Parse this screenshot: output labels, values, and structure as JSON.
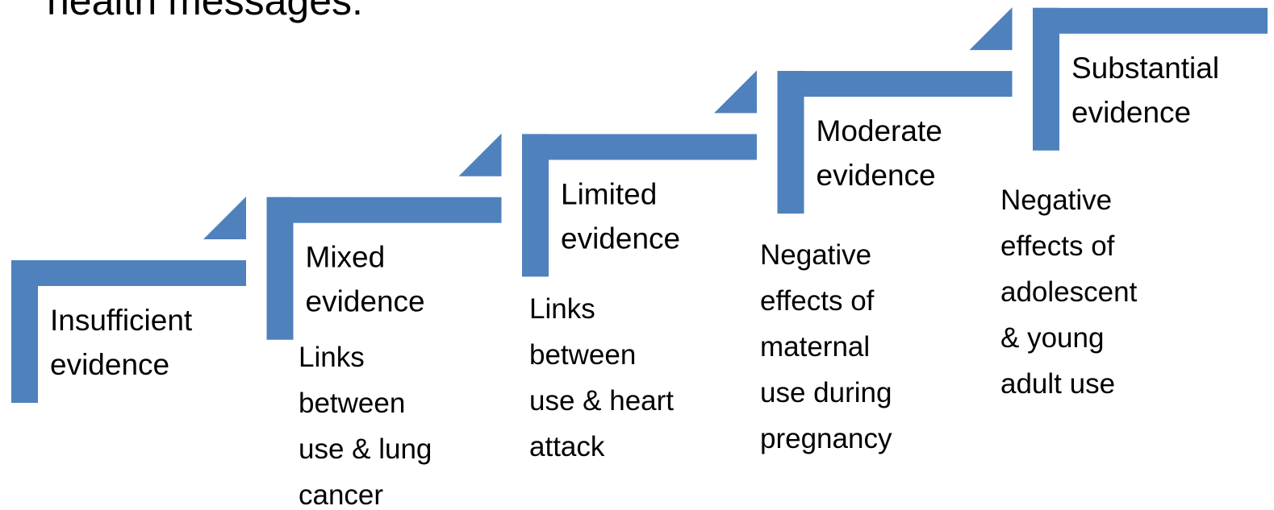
{
  "title": "health messages:",
  "steps": [
    {
      "label": [
        "Insufficient",
        "evidence"
      ],
      "description": []
    },
    {
      "label": [
        "Mixed",
        "evidence"
      ],
      "description": [
        "Links",
        "between",
        "use & lung",
        "cancer"
      ]
    },
    {
      "label": [
        "Limited",
        "evidence"
      ],
      "description": [
        "Links",
        "between",
        "use & heart",
        "attack"
      ]
    },
    {
      "label": [
        "Moderate",
        "evidence"
      ],
      "description": [
        "Negative",
        "effects of",
        "maternal",
        "use during",
        "pregnancy"
      ]
    },
    {
      "label": [
        "Substantial",
        "evidence"
      ],
      "description": [
        "Negative",
        "effects of",
        "adolescent",
        "& young",
        "adult use"
      ]
    }
  ]
}
